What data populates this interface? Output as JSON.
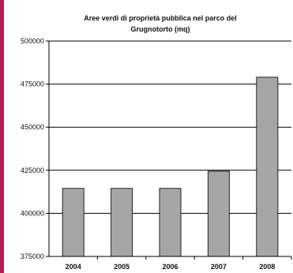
{
  "chart_data": {
    "type": "bar",
    "title_lines": [
      "Aree verdi di proprietà pubblica nel parco del",
      "Grugnotorto (mq)"
    ],
    "categories": [
      "2004",
      "2005",
      "2006",
      "2007",
      "2008"
    ],
    "values": [
      414500,
      414500,
      414500,
      424500,
      479000
    ],
    "ylim": [
      375000,
      500000
    ],
    "yticks": [
      375000,
      400000,
      425000,
      450000,
      475000,
      500000
    ],
    "ytick_labels": [
      "375000",
      "400000",
      "425000",
      "450000",
      "475000",
      "500000"
    ],
    "grid": true,
    "legend": "none"
  },
  "colors": {
    "bar_fill": "#a6a6a6",
    "bar_stroke": "#222222",
    "left_bar": "#b01e4f",
    "gridline": "#000000"
  }
}
